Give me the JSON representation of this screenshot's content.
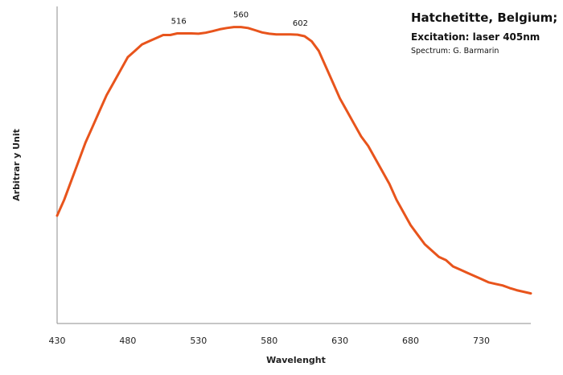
{
  "chart_data": {
    "type": "line",
    "title_lines": [
      "Hatchetitte, Belgium;",
      "Excitation: laser 405nm",
      "Spectrum: G. Barmarin"
    ],
    "xlabel": "Wavelenght",
    "ylabel": "Arbitrar y Unit",
    "xlim": [
      430,
      765
    ],
    "ylim": [
      0,
      1
    ],
    "grid": false,
    "x_ticks": [
      430,
      480,
      530,
      580,
      630,
      680,
      730
    ],
    "annotations": [
      {
        "text": "516",
        "x": 516
      },
      {
        "text": "560",
        "x": 560
      },
      {
        "text": "602",
        "x": 602
      }
    ],
    "series": [
      {
        "color": "#e8541c",
        "x": [
          430,
          435,
          440,
          445,
          450,
          455,
          460,
          465,
          470,
          475,
          480,
          485,
          490,
          495,
          500,
          505,
          510,
          515,
          520,
          525,
          530,
          535,
          540,
          545,
          550,
          555,
          560,
          565,
          570,
          575,
          580,
          585,
          590,
          595,
          600,
          605,
          610,
          615,
          620,
          625,
          630,
          635,
          640,
          645,
          650,
          655,
          660,
          665,
          670,
          675,
          680,
          685,
          690,
          695,
          700,
          705,
          710,
          715,
          720,
          725,
          730,
          735,
          740,
          745,
          750,
          755,
          760,
          765
        ],
        "values": [
          0.34,
          0.39,
          0.45,
          0.51,
          0.57,
          0.62,
          0.67,
          0.72,
          0.76,
          0.8,
          0.84,
          0.86,
          0.88,
          0.89,
          0.9,
          0.91,
          0.91,
          0.915,
          0.915,
          0.915,
          0.914,
          0.917,
          0.922,
          0.928,
          0.932,
          0.935,
          0.935,
          0.932,
          0.925,
          0.918,
          0.914,
          0.912,
          0.912,
          0.912,
          0.911,
          0.906,
          0.89,
          0.86,
          0.81,
          0.76,
          0.71,
          0.67,
          0.63,
          0.59,
          0.56,
          0.52,
          0.48,
          0.44,
          0.39,
          0.35,
          0.31,
          0.28,
          0.25,
          0.23,
          0.21,
          0.2,
          0.18,
          0.17,
          0.16,
          0.15,
          0.14,
          0.13,
          0.125,
          0.12,
          0.112,
          0.105,
          0.1,
          0.095
        ]
      }
    ]
  }
}
